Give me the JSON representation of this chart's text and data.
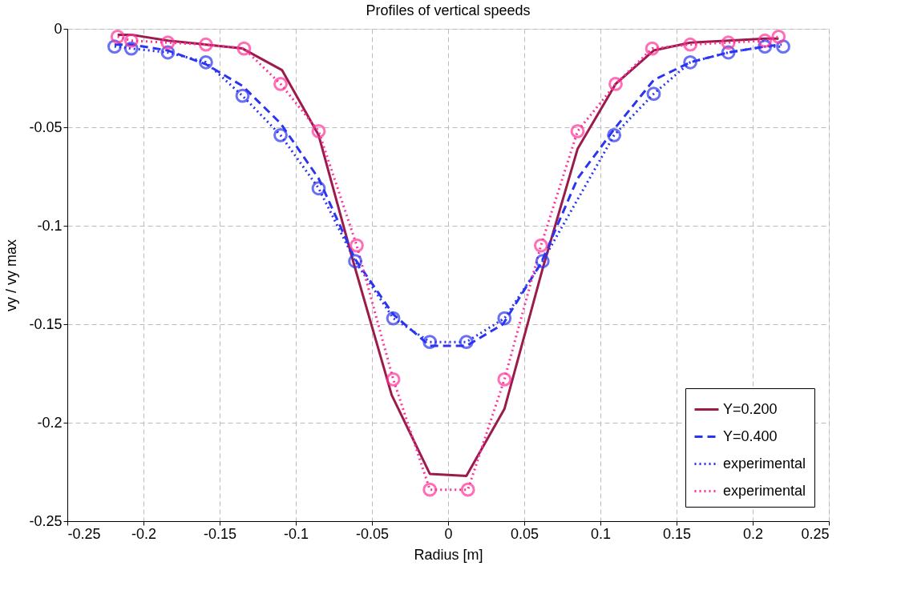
{
  "chart_data": {
    "type": "line",
    "title": "Profiles of vertical speeds",
    "xlabel": "Radius [m]",
    "ylabel": "vy / vy max",
    "xlim": [
      -0.25,
      0.25
    ],
    "xticks": [
      -0.25,
      -0.2,
      -0.15,
      -0.1,
      -0.05,
      0,
      0.05,
      0.1,
      0.15,
      0.2,
      0.25
    ],
    "ylim": [
      -0.25,
      0
    ],
    "yticks": [
      -0.25,
      -0.2,
      -0.15,
      -0.1,
      -0.05,
      0
    ],
    "grid": true,
    "legend": "bottom right",
    "series": [
      {
        "name": "Y=0.200",
        "color": "#9b1b4b",
        "line_style": "solid",
        "marker": "none",
        "x": [
          -0.217,
          -0.208,
          -0.184,
          -0.159,
          -0.135,
          -0.109,
          -0.085,
          -0.062,
          -0.037,
          -0.012,
          0.012,
          0.037,
          0.062,
          0.085,
          0.11,
          0.135,
          0.159,
          0.184,
          0.208,
          0.217
        ],
        "values": [
          -0.003,
          -0.003,
          -0.006,
          -0.008,
          -0.01,
          -0.021,
          -0.054,
          -0.119,
          -0.186,
          -0.226,
          -0.227,
          -0.193,
          -0.122,
          -0.061,
          -0.028,
          -0.011,
          -0.007,
          -0.006,
          -0.005,
          -0.005
        ]
      },
      {
        "name": "Y=0.400",
        "color": "#2b35f0",
        "line_style": "dashed",
        "marker": "none",
        "x": [
          -0.219,
          -0.208,
          -0.184,
          -0.159,
          -0.135,
          -0.11,
          -0.085,
          -0.061,
          -0.036,
          -0.012,
          0.012,
          0.036,
          0.061,
          0.085,
          0.11,
          0.135,
          0.159,
          0.184,
          0.208,
          0.219
        ],
        "values": [
          -0.008,
          -0.008,
          -0.011,
          -0.018,
          -0.029,
          -0.048,
          -0.076,
          -0.117,
          -0.145,
          -0.161,
          -0.161,
          -0.15,
          -0.119,
          -0.076,
          -0.05,
          -0.026,
          -0.017,
          -0.012,
          -0.009,
          -0.008
        ]
      },
      {
        "name": "experimental",
        "color": "#2b35f0",
        "line_style": "dotted",
        "marker": "circle",
        "x": [
          -0.219,
          -0.208,
          -0.184,
          -0.159,
          -0.135,
          -0.11,
          -0.085,
          -0.061,
          -0.036,
          -0.012,
          0.012,
          0.037,
          0.062,
          0.109,
          0.135,
          0.159,
          0.184,
          0.208,
          0.22
        ],
        "values": [
          -0.009,
          -0.01,
          -0.012,
          -0.017,
          -0.034,
          -0.054,
          -0.081,
          -0.118,
          -0.147,
          -0.159,
          -0.159,
          -0.147,
          -0.118,
          -0.054,
          -0.033,
          -0.017,
          -0.012,
          -0.009,
          -0.009
        ]
      },
      {
        "name": "experimental",
        "color": "#ff3399",
        "line_style": "dotted",
        "marker": "circle",
        "x": [
          -0.217,
          -0.208,
          -0.184,
          -0.159,
          -0.134,
          -0.11,
          -0.085,
          -0.06,
          -0.036,
          -0.012,
          0.013,
          0.037,
          0.061,
          0.085,
          0.11,
          0.134,
          0.159,
          0.184,
          0.208,
          0.217
        ],
        "values": [
          -0.004,
          -0.006,
          -0.007,
          -0.008,
          -0.01,
          -0.028,
          -0.052,
          -0.11,
          -0.178,
          -0.234,
          -0.234,
          -0.178,
          -0.11,
          -0.052,
          -0.028,
          -0.01,
          -0.008,
          -0.007,
          -0.006,
          -0.004
        ]
      }
    ]
  }
}
